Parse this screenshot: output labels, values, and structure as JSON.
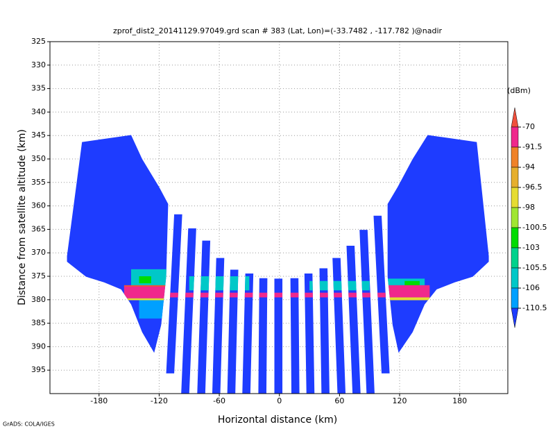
{
  "chart_data": {
    "type": "field",
    "title": "zprof_dist2_20141129.97049.grd  scan # 383  (Lat, Lon)=(-33.7482 , -117.782 )@nadir",
    "x_label": "Horizontal distance (km)",
    "y_label": "Distance from satellite altitude (km)",
    "footer": "GrADS: COLA/IGES",
    "xlim": [
      -229,
      228
    ],
    "ylim": [
      325,
      400
    ],
    "y_inverted": true,
    "xticks": [
      -180,
      -120,
      -60,
      0,
      60,
      120,
      180
    ],
    "yticks": [
      325,
      330,
      335,
      340,
      345,
      350,
      355,
      360,
      365,
      370,
      375,
      380,
      385,
      390,
      395
    ],
    "grid": true,
    "base_value": -112,
    "beams": [
      {
        "x_top": -101,
        "x_bottom": -109,
        "top": 361.8,
        "bottom": 395.7
      },
      {
        "x_top": -87,
        "x_bottom": -94,
        "top": 364.8,
        "bottom": 400
      },
      {
        "x_top": -73,
        "x_bottom": -78,
        "top": 367.4,
        "bottom": 400
      },
      {
        "x_top": -59,
        "x_bottom": -63,
        "top": 371.1,
        "bottom": 400
      },
      {
        "x_top": -45,
        "x_bottom": -48,
        "top": 373.6,
        "bottom": 400
      },
      {
        "x_top": -30,
        "x_bottom": -33,
        "top": 374.4,
        "bottom": 400
      },
      {
        "x_top": -16,
        "x_bottom": -17,
        "top": 375.4,
        "bottom": 400
      },
      {
        "x_top": -1,
        "x_bottom": -1,
        "top": 375.5,
        "bottom": 400
      },
      {
        "x_top": 15,
        "x_bottom": 16,
        "top": 375.4,
        "bottom": 400
      },
      {
        "x_top": 29,
        "x_bottom": 31,
        "top": 374.4,
        "bottom": 400
      },
      {
        "x_top": 44,
        "x_bottom": 46,
        "top": 373.3,
        "bottom": 400
      },
      {
        "x_top": 57,
        "x_bottom": 62,
        "top": 371.1,
        "bottom": 400
      },
      {
        "x_top": 71,
        "x_bottom": 77,
        "top": 368.5,
        "bottom": 400
      },
      {
        "x_top": 84,
        "x_bottom": 91,
        "top": 365.1,
        "bottom": 400
      },
      {
        "x_top": 98,
        "x_bottom": 106,
        "top": 362.1,
        "bottom": 395.7
      }
    ],
    "wings": [
      {
        "x": [
          -212,
          -197,
          -148,
          -137,
          -120,
          -111,
          -113,
          -118,
          -125,
          -137,
          -148,
          -158,
          -175,
          -193,
          -212
        ],
        "y": [
          370.7,
          346.4,
          344.9,
          350,
          356,
          359.6,
          375.1,
          385.4,
          391.3,
          386.9,
          381,
          377.8,
          376.3,
          375.1,
          371.9
        ]
      },
      {
        "x": [
          209,
          197,
          148,
          133,
          118,
          108,
          108,
          113,
          119,
          133,
          145,
          157,
          175,
          193,
          209
        ],
        "y": [
          370.7,
          346.4,
          344.9,
          350,
          356,
          359.6,
          375.1,
          385.4,
          391.3,
          386.9,
          381,
          377.8,
          376.3,
          375.1,
          371.9
        ]
      }
    ],
    "patches": [
      {
        "x0": -148,
        "x1": -112,
        "y0": 373.5,
        "y1": 377,
        "value": -105.8
      },
      {
        "x0": -140,
        "x1": -128,
        "y0": 375,
        "y1": 376.5,
        "value": -102
      },
      {
        "x0": -140,
        "x1": -112,
        "y0": 380,
        "y1": 384,
        "value": -108
      },
      {
        "x0": -90,
        "x1": -30,
        "y0": 375,
        "y1": 378,
        "value": -105.8
      },
      {
        "x0": 30,
        "x1": 90,
        "y0": 376,
        "y1": 378,
        "value": -105.8
      },
      {
        "x0": 108,
        "x1": 145,
        "y0": 375.5,
        "y1": 377,
        "value": -105.8
      },
      {
        "x0": 125,
        "x1": 140,
        "y0": 376,
        "y1": 377,
        "value": -102
      },
      {
        "x0": -155,
        "x1": -112,
        "y0": 376.9,
        "y1": 377.3,
        "value": -65
      },
      {
        "x0": -155,
        "x1": -112,
        "y0": 377.2,
        "y1": 379.7,
        "value": -80
      },
      {
        "x0": -155,
        "x1": -112,
        "y0": 379.7,
        "y1": 380.1,
        "value": -97
      },
      {
        "x0": -112,
        "x1": 108,
        "y0": 378.5,
        "y1": 379.5,
        "value": -80
      },
      {
        "x0": 108,
        "x1": 150,
        "y0": 376.9,
        "y1": 379.5,
        "value": -80
      },
      {
        "x0": 108,
        "x1": 150,
        "y0": 379.5,
        "y1": 380.1,
        "value": -97
      }
    ],
    "colorbar": {
      "label": "(dBm)",
      "levels": [
        -70,
        -91.5,
        -94,
        -96.5,
        -98,
        -100.5,
        -103,
        -105.5,
        -106,
        -110.5
      ],
      "colors": [
        "#f0503c",
        "#f0288c",
        "#f08228",
        "#e6af2d",
        "#e6dc32",
        "#a0e632",
        "#00dc00",
        "#00d28c",
        "#00c8c8",
        "#00a0ff",
        "#1e3cff"
      ]
    }
  }
}
